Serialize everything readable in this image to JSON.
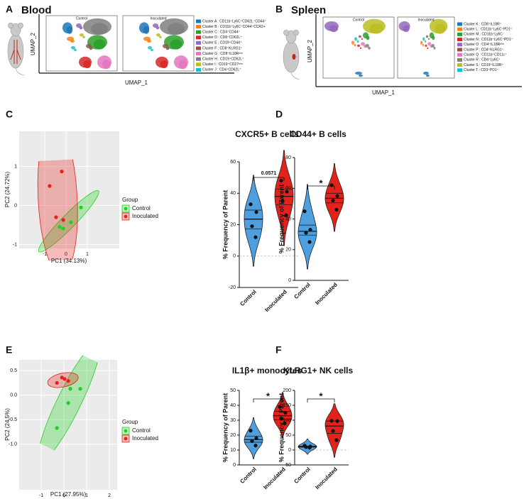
{
  "panel_labels": [
    "A",
    "B",
    "C",
    "D",
    "E",
    "F"
  ],
  "chart_data": [
    {
      "type": "umap",
      "title": "Blood",
      "panels": [
        "Control",
        "Inoculated"
      ],
      "xlabel": "UMAP_1",
      "ylabel": "UMAP_2",
      "series": [
        {
          "name": "Cluster A : CD11b⁺Ly6C⁺CD62L⁺CD44⁺",
          "color": "#1f77b4"
        },
        {
          "name": "Cluster B : CD11b⁺Ly6C⁺CD44⁺CCR2+",
          "color": "#ff7f0e"
        },
        {
          "name": "Cluster C : CD4⁺CD44⁺",
          "color": "#2ca02c"
        },
        {
          "name": "Cluster D : CD8⁺CD62L⁺",
          "color": "#d62728"
        },
        {
          "name": "Cluster E : CD19⁺CD44⁺",
          "color": "#9467bd"
        },
        {
          "name": "Cluster F : CD8⁺KLRG1⁺",
          "color": "#8c564b"
        },
        {
          "name": "Cluster G : CD8⁺IL18Rᵈⁱᵐ",
          "color": "#e377c2"
        },
        {
          "name": "Cluster H : CD19⁺CD62L⁺",
          "color": "#7f7f7f"
        },
        {
          "name": "Cluster I : CD19⁺CD27ᵈⁱᵐ",
          "color": "#bcbd22"
        },
        {
          "name": "Cluster J : CD4⁺CD62L⁺",
          "color": "#17becf"
        }
      ]
    },
    {
      "type": "umap",
      "title": "Spleen",
      "panels": [
        "Control",
        "Inoculated"
      ],
      "xlabel": "UMAP_1",
      "ylabel": "UMAP_2",
      "series": [
        {
          "name": "Cluster K : CD8⁺IL18R⁺",
          "color": "#1f77b4"
        },
        {
          "name": "Cluster L : CD11b⁺Ly6C⁺PD1⁺",
          "color": "#ff7f0e"
        },
        {
          "name": "Cluster M : CD11b⁺Ly6C⁻",
          "color": "#2ca02c"
        },
        {
          "name": "Cluster N : CD11b⁺Ly6C⁺PD1⁺",
          "color": "#d62728"
        },
        {
          "name": "Cluster O : CD4⁺IL18Rᵈⁱᵐ",
          "color": "#9467bd"
        },
        {
          "name": "Cluster P : CD4⁺KLRG1⁺",
          "color": "#8c564b"
        },
        {
          "name": "Cluster Q : CD11b⁺CD11c⁺",
          "color": "#e377c2"
        },
        {
          "name": "Cluster R : CD4⁺Ly6C⁺",
          "color": "#7f7f7f"
        },
        {
          "name": "Cluster S : CD19⁺IL18R⁺",
          "color": "#bcbd22"
        },
        {
          "name": "Cluster T : CD3⁺PD1⁺",
          "color": "#17becf"
        }
      ]
    },
    {
      "type": "pca",
      "xlabel": "PC1 (34.13%)",
      "ylabel": "PC2 (24.72%)",
      "legend_title": "Group",
      "grid": true,
      "xlim": [
        -2.2,
        2.5
      ],
      "ylim": [
        -1.1,
        1.9
      ],
      "xticks": [
        -1,
        0,
        1
      ],
      "yticks": [
        -1,
        0,
        1
      ],
      "series": [
        {
          "name": "Control",
          "color": "#1fd01f",
          "x": [
            0.7,
            0.23,
            -0.3,
            -0.13
          ],
          "y": [
            -0.05,
            -0.43,
            -0.55,
            -0.59
          ]
        },
        {
          "name": "Inoculated",
          "color": "#e3221b",
          "x": [
            -0.2,
            -0.77,
            -0.47,
            -0.13
          ],
          "y": [
            0.87,
            0.5,
            -0.3,
            -0.37
          ]
        }
      ]
    },
    {
      "type": "violin",
      "title": "CXCR5+ B cells",
      "ylabel": "% Frequency of Parent",
      "categories": [
        "Control",
        "Inoculated"
      ],
      "colors": [
        "#4d9fe0",
        "#e3221b"
      ],
      "values": [
        [
          33,
          28,
          19,
          12
        ],
        [
          48,
          41,
          35,
          26
        ]
      ],
      "ylim": [
        -20,
        60
      ],
      "yticks": [
        -20,
        0,
        20,
        40,
        60
      ],
      "annotation": "0.0571",
      "zero_line": true
    },
    {
      "type": "violin",
      "title": "CD44+ B cells",
      "ylabel": "% Frequency of Parent",
      "categories": [
        "Control",
        "Inoculated"
      ],
      "colors": [
        "#4d9fe0",
        "#e3221b"
      ],
      "values": [
        [
          45,
          33,
          31,
          25
        ],
        [
          62,
          55,
          52,
          46
        ]
      ],
      "ylim": [
        0,
        80
      ],
      "yticks": [
        0,
        20,
        40,
        60,
        80
      ],
      "annotation": "*",
      "zero_line": false
    },
    {
      "type": "pca",
      "xlabel": "PC1 (27.95%)",
      "ylabel": "PC2 (24.5%)",
      "legend_title": "Group",
      "grid": true,
      "xlim": [
        -1.97,
        2.34
      ],
      "ylim": [
        -1.93,
        0.72
      ],
      "xticks": [
        -1,
        0,
        1,
        2
      ],
      "yticks": [
        {
          "value": -1,
          "label": "-1.0"
        },
        -0.5,
        {
          "value": 0,
          "label": "0.0"
        },
        0.5
      ],
      "series": [
        {
          "name": "Control",
          "color": "#1fd01f",
          "x": [
            0.72,
            0.28,
            0.19,
            -0.31
          ],
          "y": [
            0.13,
            0.13,
            -0.16,
            -0.67
          ]
        },
        {
          "name": "Inoculated",
          "color": "#e3221b",
          "x": [
            -0.09,
            0.03,
            0.19,
            -0.31
          ],
          "y": [
            0.36,
            0.33,
            0.29,
            0.25
          ]
        }
      ]
    },
    {
      "type": "violin",
      "title": "IL1β+ monocytes",
      "ylabel": "% Frequency of Parent",
      "categories": [
        "Control",
        "Inoculated"
      ],
      "colors": [
        "#4d9fe0",
        "#e3221b"
      ],
      "values": [
        [
          23,
          18,
          16,
          13
        ],
        [
          39,
          35,
          31,
          28
        ]
      ],
      "ylim": [
        0,
        50
      ],
      "yticks": [
        0,
        10,
        20,
        30,
        40,
        50
      ],
      "annotation": "*",
      "zero_line": false
    },
    {
      "type": "violin",
      "title": "KLRG1+ NK cells",
      "ylabel": "% Frequency of Parent",
      "categories": [
        "Control",
        "Inoculated"
      ],
      "colors": [
        "#4d9fe0",
        "#e3221b"
      ],
      "values": [
        [
          15,
          12,
          10,
          8
        ],
        [
          98,
          97,
          64,
          33
        ]
      ],
      "ylim": [
        -50,
        200
      ],
      "yticks": [
        -50,
        0,
        50,
        100,
        150,
        200
      ],
      "annotation": "*",
      "zero_line": true
    }
  ]
}
